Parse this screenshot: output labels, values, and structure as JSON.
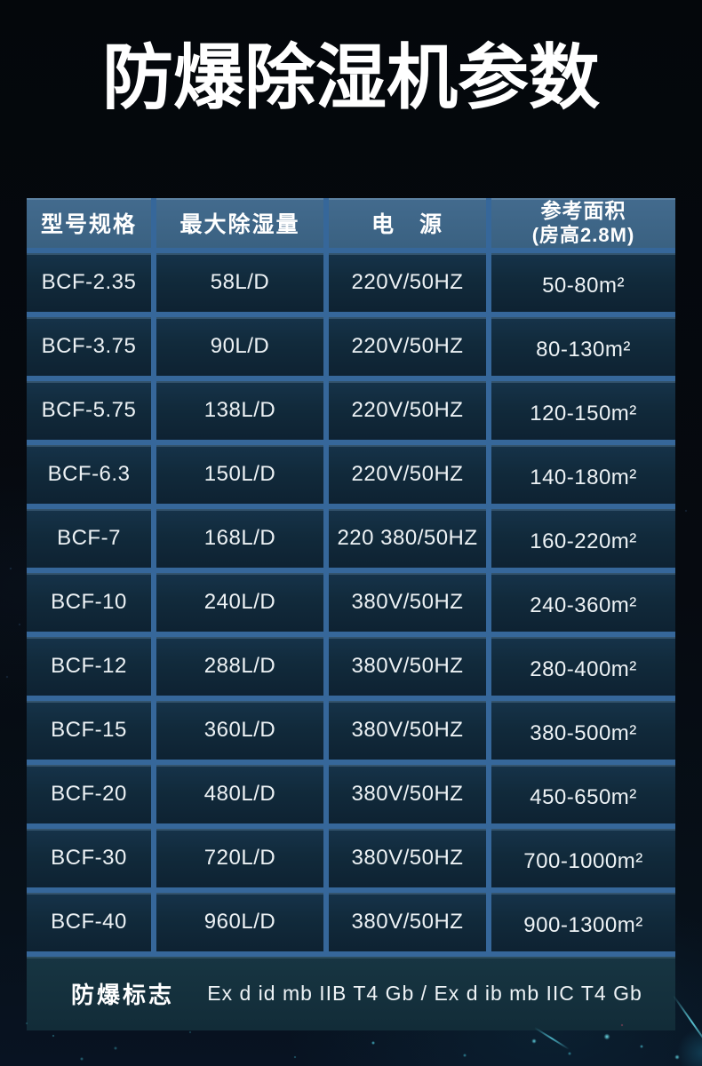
{
  "title": "防爆除湿机参数",
  "colors": {
    "page_background": "#060a10",
    "header_background": "#3c6384",
    "cell_background": "#112a3b",
    "divider": "#36679a",
    "footer_background": "#15323f",
    "text": "#ffffff",
    "particle_accent": "#45e2f5"
  },
  "table": {
    "headers": [
      {
        "label": "型号规格"
      },
      {
        "label": "最大除湿量"
      },
      {
        "label": "电　源"
      },
      {
        "label": "参考面积",
        "sub": "(房高2.8M)"
      }
    ],
    "rows": [
      {
        "model": "BCF-2.35",
        "capacity": "58L/D",
        "power": "220V/50HZ",
        "area": "50-80m²"
      },
      {
        "model": "BCF-3.75",
        "capacity": "90L/D",
        "power": "220V/50HZ",
        "area": "80-130m²"
      },
      {
        "model": "BCF-5.75",
        "capacity": "138L/D",
        "power": "220V/50HZ",
        "area": "120-150m²"
      },
      {
        "model": "BCF-6.3",
        "capacity": "150L/D",
        "power": "220V/50HZ",
        "area": "140-180m²"
      },
      {
        "model": "BCF-7",
        "capacity": "168L/D",
        "power": "220 380/50HZ",
        "area": "160-220m²"
      },
      {
        "model": "BCF-10",
        "capacity": "240L/D",
        "power": "380V/50HZ",
        "area": "240-360m²"
      },
      {
        "model": "BCF-12",
        "capacity": "288L/D",
        "power": "380V/50HZ",
        "area": "280-400m²"
      },
      {
        "model": "BCF-15",
        "capacity": "360L/D",
        "power": "380V/50HZ",
        "area": "380-500m²"
      },
      {
        "model": "BCF-20",
        "capacity": "480L/D",
        "power": "380V/50HZ",
        "area": "450-650m²"
      },
      {
        "model": "BCF-30",
        "capacity": "720L/D",
        "power": "380V/50HZ",
        "area": "700-1000m²"
      },
      {
        "model": "BCF-40",
        "capacity": "960L/D",
        "power": "380V/50HZ",
        "area": "900-1300m²"
      }
    ],
    "footer": {
      "label": "防爆标志",
      "value": "Ex d id mb IIB T4 Gb / Ex d ib mb IIC T4 Gb"
    }
  }
}
